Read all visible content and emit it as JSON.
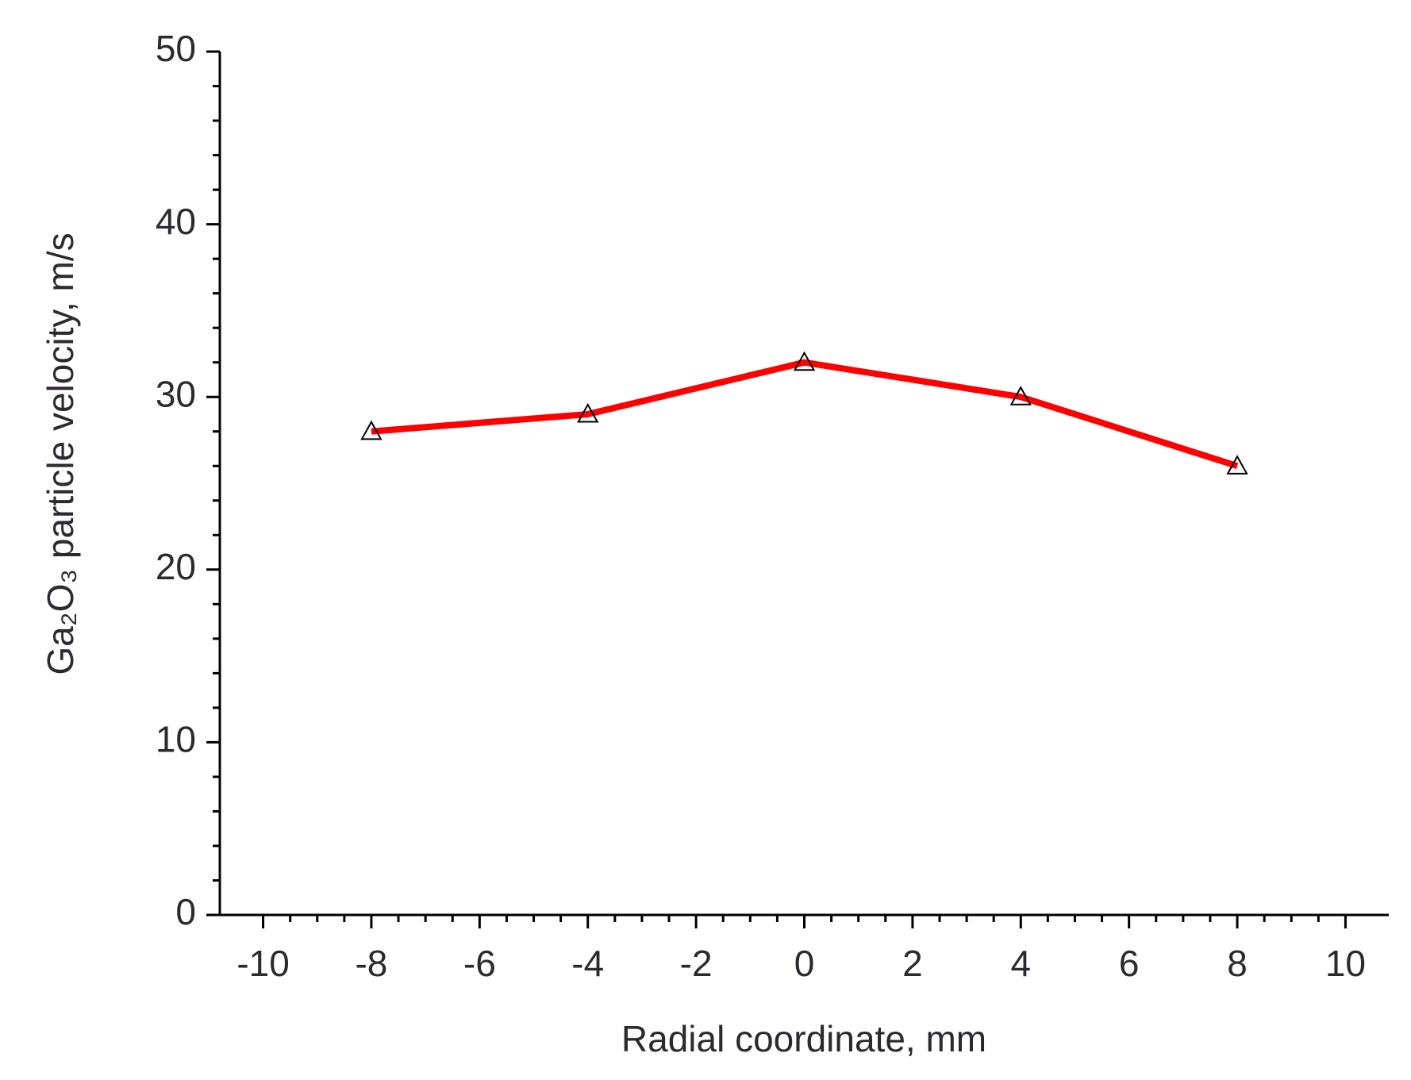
{
  "chart_data": {
    "type": "line",
    "xlabel": "Radial coordinate, mm",
    "ylabel": "Ga₂O₃ particle velocity, m/s",
    "x": [
      -8,
      -4,
      0,
      4,
      8
    ],
    "series": [
      {
        "color": "#ff0000",
        "marker": "triangle-open",
        "marker_color": "#000000",
        "values": [
          28,
          29,
          32,
          30,
          26
        ]
      }
    ],
    "xlim": [
      -10.8,
      10.8
    ],
    "xticks": [
      -10,
      -8,
      -6,
      -4,
      -2,
      0,
      2,
      4,
      6,
      8,
      10
    ],
    "ylim": [
      0,
      50
    ],
    "yticks": [
      0,
      10,
      20,
      30,
      40,
      50
    ],
    "grid": false
  }
}
